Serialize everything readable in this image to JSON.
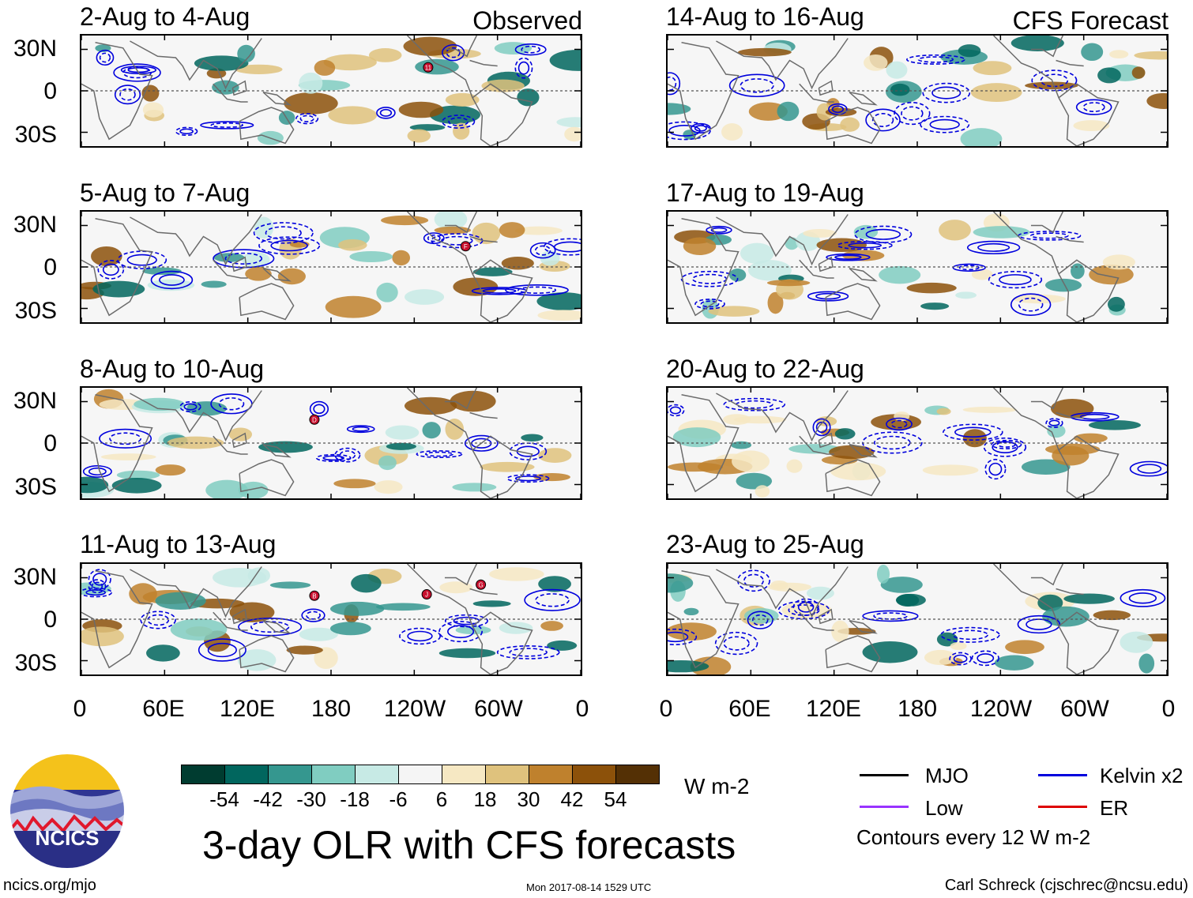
{
  "chart_data": {
    "type": "heatmap",
    "title": "3-day OLR with CFS forecasts",
    "columns": [
      {
        "label": "Observed",
        "panels": [
          "2-Aug to 4-Aug",
          "5-Aug to 7-Aug",
          "8-Aug to 10-Aug",
          "11-Aug to 13-Aug"
        ]
      },
      {
        "label": "CFS Forecast",
        "panels": [
          "14-Aug to 16-Aug",
          "17-Aug to 19-Aug",
          "20-Aug to 22-Aug",
          "23-Aug to 25-Aug"
        ]
      }
    ],
    "lat_labels": [
      "30N",
      "0",
      "30S"
    ],
    "lon_labels": [
      "0",
      "60E",
      "120E",
      "180",
      "120W",
      "60W",
      "0"
    ],
    "ylim": [
      -40,
      40
    ],
    "xlim": [
      0,
      360
    ],
    "colorbar": {
      "unit": "W m-2",
      "ticks": [
        "-54",
        "-42",
        "-30",
        "-18",
        "-6",
        "6",
        "18",
        "30",
        "42",
        "54"
      ],
      "colors": [
        "#003c30",
        "#01665e",
        "#35978f",
        "#80cdc1",
        "#c7eae5",
        "#f5f5f5",
        "#f6e8c3",
        "#dfc27d",
        "#bf812d",
        "#8c510a",
        "#543005"
      ]
    },
    "legend": [
      {
        "label": "MJO",
        "color": "#000000"
      },
      {
        "label": "Kelvin x2",
        "color": "#0000dd"
      },
      {
        "label": "Low",
        "color": "#9933ff"
      },
      {
        "label": "ER",
        "color": "#dd0000"
      }
    ],
    "contour_note": "Contours every 12 W m-2",
    "storm_markers": [
      {
        "panel": "2-Aug to 4-Aug",
        "label": "11",
        "lon": 250,
        "lat": 17
      },
      {
        "panel": "5-Aug to 7-Aug",
        "label": "F",
        "lon": 277,
        "lat": 15
      },
      {
        "panel": "8-Aug to 10-Aug",
        "label": "D",
        "lon": 168,
        "lat": 17
      },
      {
        "panel": "11-Aug to 13-Aug",
        "label": "B",
        "lon": 168,
        "lat": 17
      },
      {
        "panel": "11-Aug to 13-Aug",
        "label": "J",
        "lon": 249,
        "lat": 18
      },
      {
        "panel": "11-Aug to 13-Aug",
        "label": "G",
        "lon": 288,
        "lat": 25
      }
    ]
  },
  "logo": {
    "text": "NCICS"
  },
  "footer": {
    "url": "ncics.org/mjo",
    "timestamp": "Mon 2017-08-14 1529 UTC",
    "credit": "Carl Schreck (cjschrec@ncsu.edu)"
  }
}
